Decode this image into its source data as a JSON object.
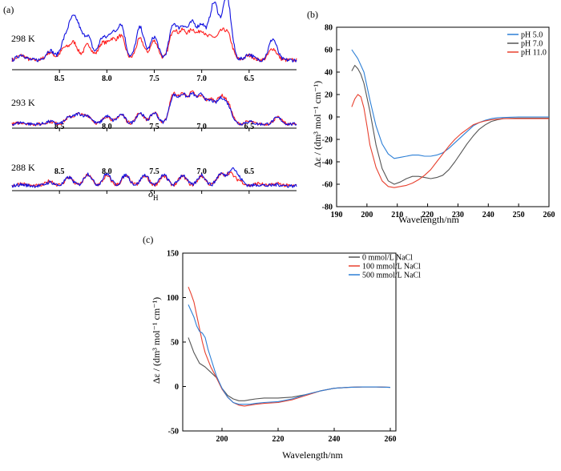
{
  "panel_a": {
    "label": "(a)",
    "xlabel_main": "δ",
    "xlabel_sub": "H",
    "colors": {
      "red": "#ff2020",
      "blue": "#1010e0"
    },
    "chart_data": {
      "type": "line",
      "xlim": [
        9.0,
        6.0
      ],
      "xticks": [
        8.5,
        8.0,
        7.5,
        7.0,
        6.5
      ],
      "xtick_labels": [
        "8.5",
        "8.0",
        "7.5",
        "7.0",
        "6.5"
      ],
      "spectra": [
        {
          "label": "298 K",
          "peaks_red": [
            [
              8.9,
              0.12
            ],
            [
              8.6,
              0.2
            ],
            [
              8.45,
              0.3
            ],
            [
              8.35,
              0.45
            ],
            [
              8.2,
              0.4
            ],
            [
              8.05,
              0.42
            ],
            [
              7.95,
              0.5
            ],
            [
              7.85,
              0.6
            ],
            [
              7.65,
              0.55
            ],
            [
              7.5,
              0.5
            ],
            [
              7.3,
              0.75
            ],
            [
              7.2,
              0.7
            ],
            [
              7.1,
              0.72
            ],
            [
              7.0,
              0.7
            ],
            [
              6.9,
              0.55
            ],
            [
              6.8,
              0.62
            ],
            [
              6.72,
              0.6
            ],
            [
              6.5,
              0.12
            ],
            [
              6.25,
              0.3
            ]
          ],
          "peaks_blue": [
            [
              8.9,
              0.14
            ],
            [
              8.6,
              0.25
            ],
            [
              8.45,
              0.45
            ],
            [
              8.37,
              0.85
            ],
            [
              8.3,
              0.7
            ],
            [
              8.2,
              0.6
            ],
            [
              8.05,
              0.55
            ],
            [
              7.95,
              0.65
            ],
            [
              7.85,
              0.9
            ],
            [
              7.65,
              0.85
            ],
            [
              7.5,
              0.6
            ],
            [
              7.3,
              0.9
            ],
            [
              7.2,
              0.8
            ],
            [
              7.1,
              0.9
            ],
            [
              7.0,
              0.85
            ],
            [
              6.9,
              0.75
            ],
            [
              6.85,
              1.0
            ],
            [
              6.75,
              0.9
            ],
            [
              6.72,
              0.85
            ],
            [
              6.5,
              0.15
            ],
            [
              6.25,
              0.55
            ]
          ]
        },
        {
          "label": "293 K",
          "peaks_red": [
            [
              8.9,
              0.05
            ],
            [
              8.6,
              0.08
            ],
            [
              8.4,
              0.2
            ],
            [
              8.3,
              0.3
            ],
            [
              8.2,
              0.25
            ],
            [
              8.0,
              0.25
            ],
            [
              7.85,
              0.3
            ],
            [
              7.65,
              0.35
            ],
            [
              7.5,
              0.35
            ],
            [
              7.3,
              0.9
            ],
            [
              7.2,
              0.85
            ],
            [
              7.1,
              0.9
            ],
            [
              7.0,
              0.8
            ],
            [
              6.9,
              0.7
            ],
            [
              6.8,
              0.75
            ],
            [
              6.72,
              0.55
            ],
            [
              6.5,
              0.08
            ],
            [
              6.2,
              0.2
            ]
          ],
          "peaks_blue": [
            [
              8.9,
              0.05
            ],
            [
              8.6,
              0.08
            ],
            [
              8.4,
              0.2
            ],
            [
              8.3,
              0.3
            ],
            [
              8.2,
              0.25
            ],
            [
              8.0,
              0.25
            ],
            [
              7.85,
              0.3
            ],
            [
              7.65,
              0.35
            ],
            [
              7.5,
              0.35
            ],
            [
              7.3,
              0.85
            ],
            [
              7.2,
              0.85
            ],
            [
              7.1,
              0.85
            ],
            [
              7.0,
              0.85
            ],
            [
              6.9,
              0.65
            ],
            [
              6.8,
              0.7
            ],
            [
              6.72,
              0.5
            ],
            [
              6.5,
              0.08
            ],
            [
              6.2,
              0.2
            ]
          ]
        },
        {
          "label": "288 K",
          "peaks_red": [
            [
              8.9,
              0.1
            ],
            [
              8.6,
              0.2
            ],
            [
              8.4,
              0.35
            ],
            [
              8.2,
              0.45
            ],
            [
              8.0,
              0.4
            ],
            [
              7.8,
              0.4
            ],
            [
              7.6,
              0.4
            ],
            [
              7.4,
              0.4
            ],
            [
              7.2,
              0.4
            ],
            [
              7.0,
              0.4
            ],
            [
              6.8,
              0.45
            ],
            [
              6.7,
              0.5
            ],
            [
              6.6,
              0.2
            ],
            [
              6.4,
              0.1
            ],
            [
              6.2,
              0.1
            ]
          ],
          "peaks_blue": [
            [
              8.9,
              0.05
            ],
            [
              8.6,
              0.15
            ],
            [
              8.4,
              0.35
            ],
            [
              8.2,
              0.5
            ],
            [
              8.0,
              0.5
            ],
            [
              7.8,
              0.45
            ],
            [
              7.6,
              0.45
            ],
            [
              7.4,
              0.45
            ],
            [
              7.2,
              0.45
            ],
            [
              7.0,
              0.45
            ],
            [
              6.8,
              0.5
            ],
            [
              6.68,
              0.7
            ],
            [
              6.6,
              0.25
            ],
            [
              6.4,
              0.05
            ],
            [
              6.2,
              0.05
            ]
          ]
        }
      ]
    }
  },
  "panel_b": {
    "label": "(b)",
    "ylabel": "Δε / (dm³ mol⁻¹ cm⁻¹)",
    "xlabel": "Wavelength/nm",
    "chart_data": {
      "type": "line",
      "xlim": [
        190,
        260
      ],
      "ylim": [
        -80,
        80
      ],
      "xticks": [
        190,
        200,
        210,
        220,
        230,
        240,
        250,
        260
      ],
      "yticks": [
        -80,
        -60,
        -40,
        -20,
        0,
        20,
        40,
        60,
        80
      ],
      "series": [
        {
          "name": "pH 5.0",
          "color": "#2c7fd6",
          "x": [
            195,
            197,
            199,
            201,
            203,
            205,
            207,
            209,
            211,
            213,
            215,
            217,
            219,
            221,
            223,
            225,
            227,
            229,
            231,
            233,
            235,
            237,
            239,
            241,
            243,
            245,
            250,
            255,
            260
          ],
          "y": [
            60,
            52,
            40,
            15,
            -8,
            -24,
            -33,
            -37,
            -36,
            -35,
            -34,
            -34,
            -35,
            -35,
            -34,
            -32,
            -28,
            -23,
            -18,
            -13,
            -8,
            -5,
            -3,
            -1.5,
            -0.8,
            -0.5,
            0,
            0,
            0
          ]
        },
        {
          "name": "pH 7.0",
          "color": "#555555",
          "x": [
            195,
            196,
            197,
            198,
            199,
            201,
            203,
            205,
            207,
            209,
            211,
            213,
            215,
            217,
            219,
            221,
            223,
            225,
            227,
            229,
            231,
            233,
            235,
            237,
            239,
            241,
            243,
            245,
            250,
            255,
            260
          ],
          "y": [
            41,
            46,
            43,
            38,
            30,
            5,
            -25,
            -46,
            -57,
            -60,
            -58,
            -55,
            -53,
            -53,
            -54,
            -55,
            -54,
            -52,
            -47,
            -40,
            -32,
            -24,
            -17,
            -11,
            -7,
            -4,
            -2.5,
            -1.5,
            -1,
            -1,
            -1
          ]
        },
        {
          "name": "pH 11.0",
          "color": "#e8402e",
          "x": [
            195,
            196,
            197,
            198,
            199,
            200,
            201,
            203,
            205,
            207,
            209,
            211,
            213,
            215,
            217,
            219,
            221,
            223,
            225,
            227,
            229,
            231,
            233,
            235,
            237,
            239,
            241,
            243,
            245,
            250,
            255,
            260
          ],
          "y": [
            9,
            16,
            20,
            18,
            8,
            -8,
            -25,
            -45,
            -57,
            -62,
            -63,
            -62,
            -61,
            -59,
            -56,
            -52,
            -47,
            -40,
            -33,
            -26,
            -20,
            -15,
            -11,
            -7,
            -5,
            -3.5,
            -2.5,
            -2,
            -1.5,
            -1.5,
            -1.5,
            -1.5
          ]
        }
      ]
    }
  },
  "panel_c": {
    "label": "(c)",
    "ylabel": "Δε / (dm³ mol⁻¹ cm⁻¹)",
    "xlabel": "Wavelength/nm",
    "chart_data": {
      "type": "line",
      "xlim": [
        186,
        262
      ],
      "ylim": [
        -50,
        150
      ],
      "xticks": [
        200,
        220,
        240,
        260
      ],
      "yticks": [
        -50,
        0,
        50,
        100,
        150
      ],
      "series": [
        {
          "name": "0 mmol/L NaCl",
          "color": "#555555",
          "x": [
            188,
            190,
            192,
            194,
            196,
            198,
            200,
            202,
            204,
            206,
            208,
            210,
            212,
            215,
            220,
            225,
            230,
            235,
            240,
            245,
            250,
            255,
            260
          ],
          "y": [
            55,
            38,
            26,
            22,
            16,
            10,
            -2,
            -10,
            -14,
            -16,
            -16,
            -15,
            -14,
            -13,
            -13,
            -12,
            -9,
            -5,
            -2,
            -1,
            -0.5,
            -0.5,
            -1
          ]
        },
        {
          "name": "100 mmol/L NaCl",
          "color": "#e8402e",
          "x": [
            188,
            189,
            190,
            191,
            192,
            193,
            194,
            196,
            198,
            200,
            202,
            204,
            206,
            208,
            210,
            212,
            215,
            220,
            225,
            230,
            235,
            240,
            245,
            250,
            255,
            260
          ],
          "y": [
            112,
            104,
            95,
            80,
            65,
            50,
            38,
            22,
            10,
            -3,
            -12,
            -18,
            -21,
            -22,
            -21,
            -20,
            -19,
            -18,
            -15,
            -10,
            -5,
            -2,
            -1,
            -0.5,
            -0.5,
            -1
          ]
        },
        {
          "name": "500 mmol/L NaCl",
          "color": "#2c7fd6",
          "x": [
            188,
            189,
            190,
            191,
            192,
            193,
            194,
            195,
            196,
            198,
            200,
            202,
            204,
            206,
            208,
            210,
            212,
            215,
            220,
            225,
            230,
            235,
            240,
            245,
            250,
            255,
            260
          ],
          "y": [
            92,
            85,
            78,
            68,
            62,
            60,
            55,
            42,
            32,
            12,
            -2,
            -12,
            -18,
            -20,
            -20,
            -20,
            -19,
            -18,
            -17,
            -14,
            -9,
            -5,
            -2,
            -1,
            -0.5,
            -0.5,
            -1
          ]
        }
      ]
    }
  }
}
